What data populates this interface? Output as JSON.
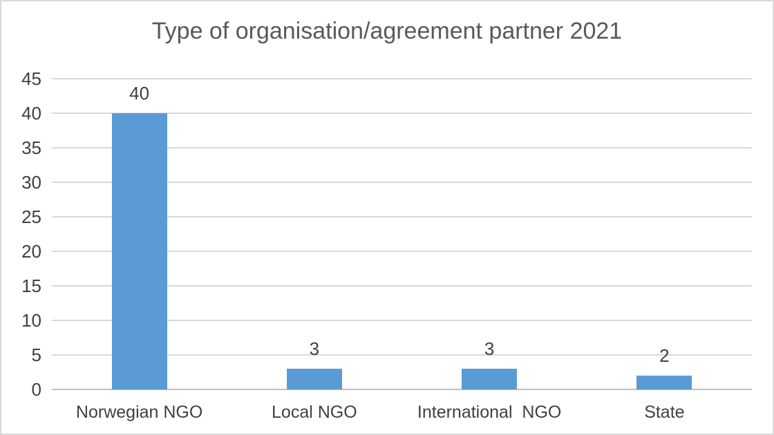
{
  "frame": {
    "background": "#FFFFFF",
    "border_color": "#D8D8D8"
  },
  "chart_data": {
    "type": "bar",
    "title": "Type of organisation/agreement partner 2021",
    "categories": [
      "Norwegian NGO",
      "Local NGO",
      "International  NGO",
      "State"
    ],
    "values": [
      40,
      3,
      3,
      2
    ],
    "data_labels": [
      "40",
      "3",
      "3",
      "2"
    ],
    "xlabel": "",
    "ylabel": "",
    "ylim": [
      0,
      45
    ],
    "ytick_step": 5,
    "yticks": [
      0,
      5,
      10,
      15,
      20,
      25,
      30,
      35,
      40,
      45
    ],
    "grid": "horizontal",
    "legend": "none",
    "colors": {
      "bar": "#5B9BD5",
      "gridline": "#D9D9D9",
      "axis_line": "#BFBFBF",
      "tick_label": "#404040",
      "data_label": "#404040",
      "category_label": "#404040",
      "title": "#595959"
    }
  }
}
